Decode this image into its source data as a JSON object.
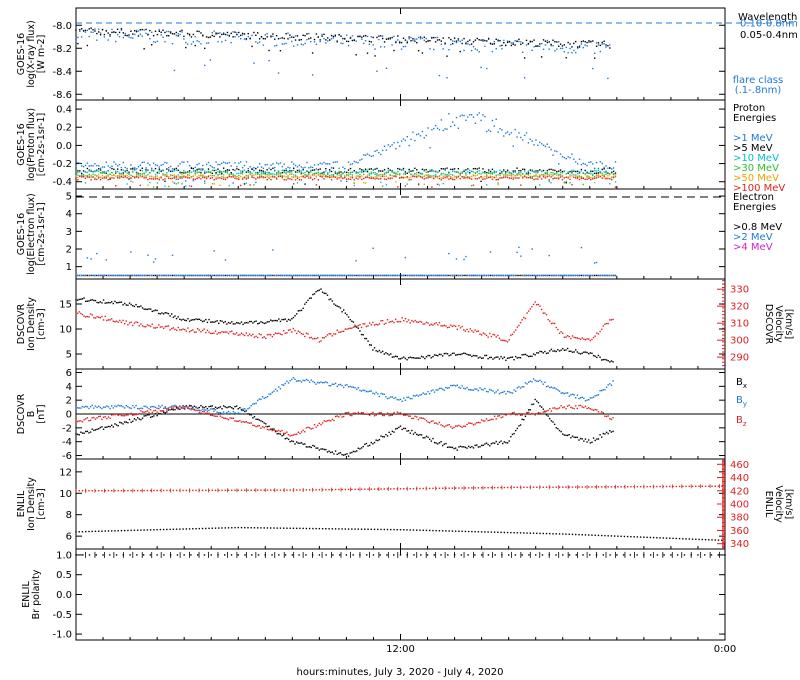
{
  "chart_data": [
    {
      "type": "scatter",
      "ylabel": [
        "GOES-16",
        "log(X-ray flux)",
        "[W m-2]"
      ],
      "ytick_labels": [
        "-8.0",
        "-8.2",
        "-8.4",
        "-8.6"
      ],
      "ylim": [
        -8.65,
        -7.85
      ],
      "ytick_values": [
        -8.0,
        -8.2,
        -8.4,
        -8.6
      ],
      "hline": -7.98,
      "legend_title": "Wavelength",
      "series": [
        {
          "name": "0.10-0.8nm",
          "color": "#1e78d8",
          "level": -8.08,
          "noise": 0.06,
          "end": 19.8,
          "trend": -0.12
        },
        {
          "name": "0.05-0.4nm",
          "color": "#000000",
          "level": -8.05,
          "noise": 0.03,
          "end": 19.8,
          "trend": -0.12
        }
      ],
      "note_lines": [
        "flare class",
        "(.1-.8nm)"
      ],
      "note_color": "#1e78d8"
    },
    {
      "type": "scatter",
      "ylabel": [
        "GOES-16",
        "log(Proton flux)",
        "[cm-2s-1sr-1]"
      ],
      "ytick_labels": [
        "0.4",
        "0.2",
        "0.0",
        "-0.2",
        "-0.4"
      ],
      "ylim": [
        -0.48,
        0.5
      ],
      "ytick_values": [
        0.4,
        0.2,
        0.0,
        -0.2,
        -0.4
      ],
      "legend_title_lines": [
        "Proton",
        "Energies"
      ],
      "series": [
        {
          "name": ">1 MeV",
          "color": "#1e78d8",
          "level": -0.22,
          "noise": 0.04,
          "end": 20.0,
          "bump": 0.55
        },
        {
          "name": ">5 MeV",
          "color": "#000000",
          "level": -0.28,
          "noise": 0.03,
          "end": 20.0
        },
        {
          "name": ">10 MeV",
          "color": "#00c0d0",
          "level": -0.3,
          "noise": 0.03,
          "end": 20.0
        },
        {
          "name": ">30 MeV",
          "color": "#30c030",
          "level": -0.32,
          "noise": 0.03,
          "end": 20.0
        },
        {
          "name": ">50 MeV",
          "color": "#f0a000",
          "level": -0.34,
          "noise": 0.02,
          "end": 20.0
        },
        {
          "name": ">100 MeV",
          "color": "#e02020",
          "level": -0.36,
          "noise": 0.02,
          "end": 20.0
        }
      ]
    },
    {
      "type": "scatter",
      "ylabel": [
        "GOES-16",
        "log(Electron flux)",
        "[cm-2s-1sr-1]"
      ],
      "ytick_labels": [
        "5",
        "4",
        "3",
        "2",
        "1"
      ],
      "ylim": [
        0.3,
        5.4
      ],
      "ytick_values": [
        5,
        4,
        3,
        2,
        1
      ],
      "hline": 4.95,
      "legend_title_lines": [
        "Electron",
        "Energies"
      ],
      "series": [
        {
          "name": ">0.8 MeV",
          "color": "#000000",
          "level": 0.5,
          "noise": 0.0,
          "end": 20.0
        },
        {
          "name": ">2 MeV",
          "color": "#1e78d8",
          "level": 0.5,
          "noise": 0.0,
          "end": 20.0,
          "sparse": 1.8
        },
        {
          "name": ">4 MeV",
          "color": "#d020d0",
          "level": 0.5,
          "noise": 0.0,
          "end": 0
        }
      ]
    },
    {
      "type": "scatter",
      "ylabel": [
        "DSCOVR",
        "Ion Density",
        "[cm-3]"
      ],
      "ytick_labels": [
        "15",
        "10",
        "5"
      ],
      "ylim": [
        2.0,
        20.0
      ],
      "ytick_values": [
        15,
        10,
        5
      ],
      "y2label": [
        "DSCOVR",
        "Velocity",
        "[km/s]"
      ],
      "y2tick_labels": [
        "330",
        "320",
        "310",
        "300",
        "290"
      ],
      "y2lim": [
        283,
        336
      ],
      "y2tick_values": [
        330,
        320,
        310,
        300,
        290
      ],
      "series": [
        {
          "name": "Density",
          "color": "#000000",
          "axis": "left",
          "profile": [
            [
              0,
              16
            ],
            [
              2,
              15
            ],
            [
              4,
              12
            ],
            [
              6,
              11
            ],
            [
              8,
              12
            ],
            [
              9,
              18
            ],
            [
              10,
              13
            ],
            [
              11,
              6
            ],
            [
              12,
              4
            ],
            [
              14,
              5
            ],
            [
              16,
              4
            ],
            [
              18,
              6
            ],
            [
              19,
              5
            ],
            [
              20,
              3
            ]
          ]
        },
        {
          "name": "Velocity",
          "color": "#e02020",
          "axis": "right",
          "profile": [
            [
              0,
              316
            ],
            [
              2,
              310
            ],
            [
              4,
              306
            ],
            [
              6,
              304
            ],
            [
              7,
              302
            ],
            [
              8,
              306
            ],
            [
              9,
              300
            ],
            [
              10,
              307
            ],
            [
              12,
              312
            ],
            [
              14,
              308
            ],
            [
              16,
              300
            ],
            [
              17,
              322
            ],
            [
              18,
              303
            ],
            [
              19,
              300
            ],
            [
              20,
              315
            ]
          ]
        }
      ]
    },
    {
      "type": "scatter",
      "ylabel": [
        "DSCOVR",
        "B",
        "[nT]"
      ],
      "ytick_labels": [
        "6",
        "4",
        "2",
        "0",
        "-2",
        "-4",
        "-6"
      ],
      "ylim": [
        -6.5,
        6.5
      ],
      "ytick_values": [
        6,
        4,
        2,
        0,
        -2,
        -4,
        -6
      ],
      "hline": 0,
      "series": [
        {
          "name": "Bx",
          "color": "#000000",
          "profile": [
            [
              0,
              -3
            ],
            [
              2,
              -1
            ],
            [
              4,
              1
            ],
            [
              6,
              1
            ],
            [
              8,
              -4
            ],
            [
              10,
              -6
            ],
            [
              12,
              -2
            ],
            [
              14,
              -5
            ],
            [
              16,
              -4
            ],
            [
              17,
              2
            ],
            [
              18,
              -3
            ],
            [
              19,
              -4
            ],
            [
              20,
              -2
            ]
          ]
        },
        {
          "name": "By",
          "color": "#1e78d8",
          "profile": [
            [
              0,
              1
            ],
            [
              2,
              1
            ],
            [
              4,
              1
            ],
            [
              6,
              0
            ],
            [
              8,
              5
            ],
            [
              10,
              4
            ],
            [
              12,
              2
            ],
            [
              14,
              4
            ],
            [
              16,
              3
            ],
            [
              17,
              5
            ],
            [
              18,
              3
            ],
            [
              19,
              2
            ],
            [
              20,
              5
            ]
          ]
        },
        {
          "name": "Bz",
          "color": "#e02020",
          "profile": [
            [
              0,
              -1
            ],
            [
              2,
              0
            ],
            [
              4,
              1
            ],
            [
              6,
              -1
            ],
            [
              8,
              -3
            ],
            [
              10,
              0
            ],
            [
              12,
              0
            ],
            [
              14,
              -2
            ],
            [
              16,
              0
            ],
            [
              17,
              0
            ],
            [
              18,
              1
            ],
            [
              19,
              1
            ],
            [
              20,
              -1
            ]
          ]
        }
      ]
    },
    {
      "type": "line",
      "ylabel": [
        "ENLIL",
        "Ion Density",
        "[cm-3]"
      ],
      "ytick_labels": [
        "12",
        "10",
        "8",
        "6"
      ],
      "ylim": [
        4.8,
        13.2
      ],
      "ytick_values": [
        12,
        10,
        8,
        6
      ],
      "y2label": [
        "ENLIL",
        "Velocity",
        "[km/s]"
      ],
      "y2tick_labels": [
        "460",
        "440",
        "420",
        "400",
        "380",
        "360",
        "340"
      ],
      "y2lim": [
        332,
        468
      ],
      "y2tick_values": [
        460,
        440,
        420,
        400,
        380,
        360,
        340
      ],
      "series": [
        {
          "name": "Density",
          "color": "#000000",
          "axis": "left",
          "profile": [
            [
              0,
              6.4
            ],
            [
              6,
              6.8
            ],
            [
              12,
              6.6
            ],
            [
              18,
              6.2
            ],
            [
              24,
              5.6
            ]
          ]
        },
        {
          "name": "Velocity",
          "color": "#e02020",
          "axis": "right",
          "profile": [
            [
              0,
              420
            ],
            [
              8,
              421
            ],
            [
              16,
              425
            ],
            [
              24,
              427
            ]
          ]
        }
      ]
    },
    {
      "type": "line",
      "ylabel": [
        "ENLIL",
        "Br polarity"
      ],
      "ytick_labels": [
        "1.0",
        "0.5",
        "0.0",
        "-0.5",
        "-1.0"
      ],
      "ylim": [
        -1.15,
        1.15
      ],
      "ytick_values": [
        1.0,
        0.5,
        0.0,
        -0.5,
        -1.0
      ],
      "series": [
        {
          "name": "Br polarity",
          "color": "#000000",
          "profile": [
            [
              0,
              1
            ],
            [
              24,
              1
            ]
          ]
        }
      ]
    }
  ],
  "xaxis": {
    "tick_labels": [
      "12:00",
      "0:00"
    ],
    "tick_hours": [
      12,
      24
    ],
    "xlim_hours": [
      0,
      24
    ],
    "title": "hours:minutes, July  3, 2020 - July  4, 2020"
  }
}
